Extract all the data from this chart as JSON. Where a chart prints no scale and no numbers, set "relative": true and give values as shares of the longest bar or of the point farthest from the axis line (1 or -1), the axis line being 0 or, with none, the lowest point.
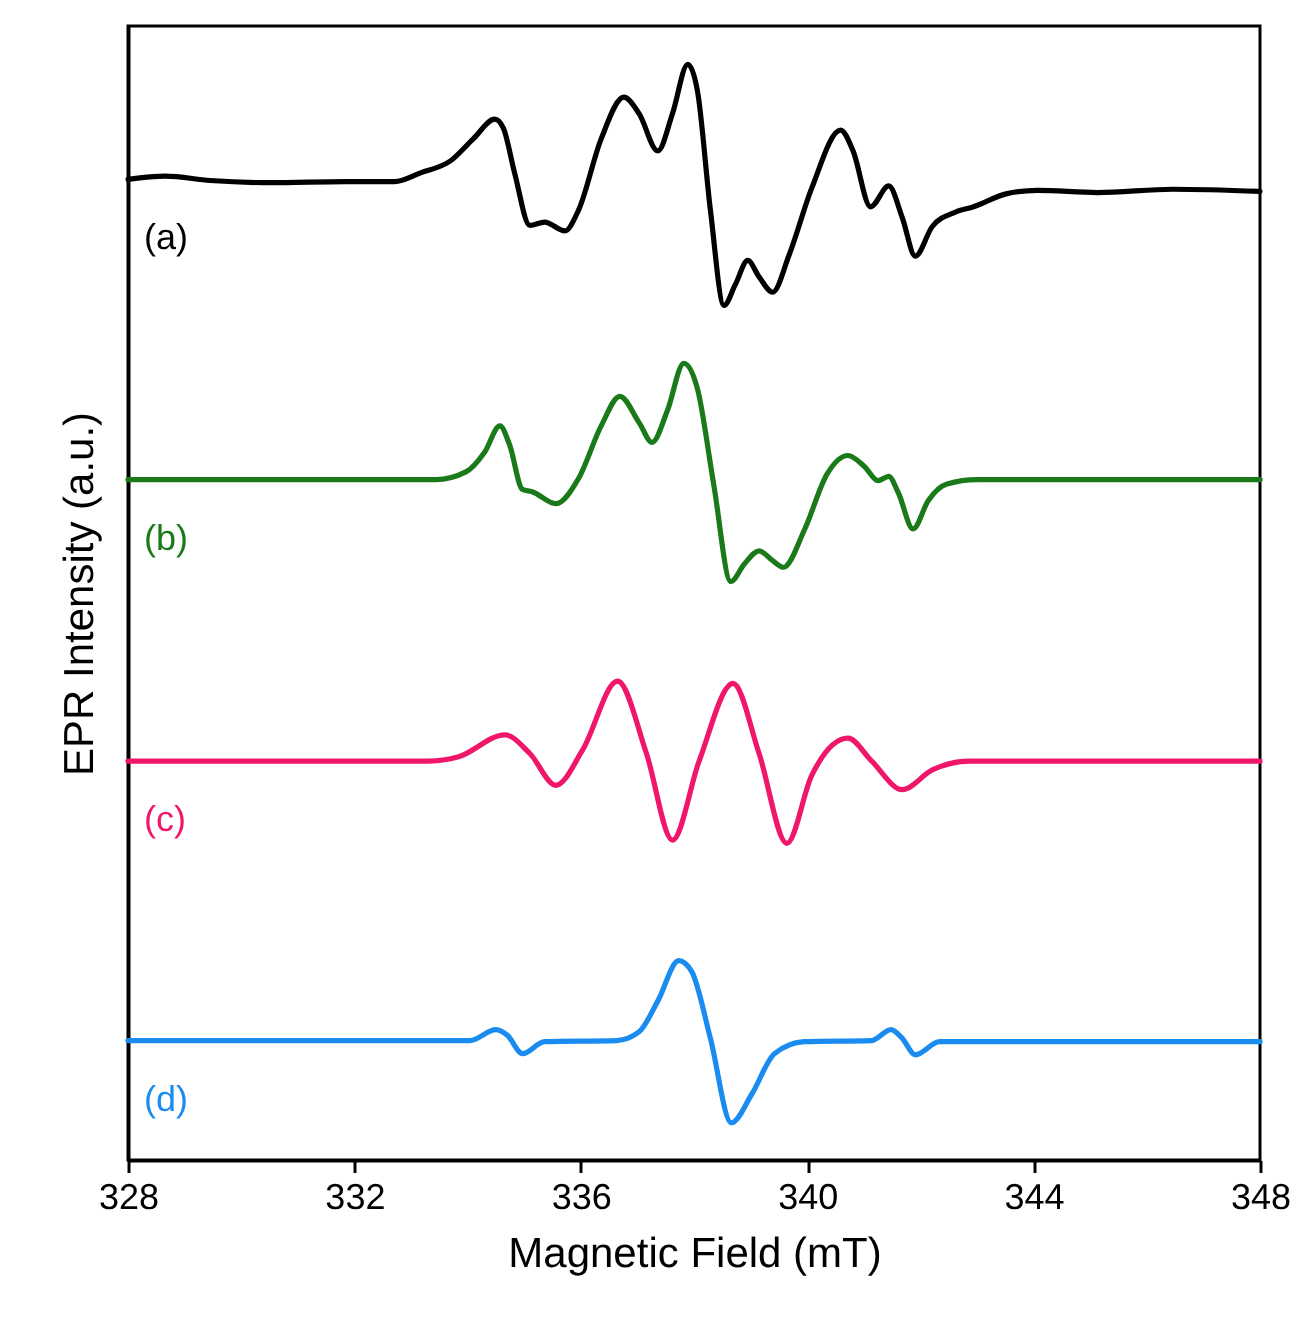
{
  "chart_data": {
    "type": "line",
    "relative": true,
    "xlabel": "Magnetic Field (mT)",
    "ylabel": "EPR Intensity (a.u.)",
    "xlim": [
      328,
      348
    ],
    "xticks": [
      328,
      332,
      336,
      340,
      344,
      348
    ],
    "tick_labels": "x",
    "series": [
      {
        "name": "(a)",
        "color": "#000000",
        "x": [
          328.0,
          328.66,
          329.45,
          330.52,
          331.85,
          332.71,
          333.17,
          333.7,
          334.1,
          334.48,
          334.63,
          334.83,
          335.1,
          335.36,
          335.72,
          335.96,
          336.36,
          336.76,
          337.03,
          337.36,
          337.62,
          337.89,
          338.06,
          338.29,
          338.53,
          338.73,
          338.95,
          339.15,
          339.39,
          339.68,
          340.08,
          340.59,
          340.81,
          341.12,
          341.44,
          341.68,
          341.91,
          342.21,
          342.61,
          342.94,
          343.53,
          344.07,
          345.13,
          346.46,
          348.0
        ],
        "values": [
          0.895,
          0.898,
          0.894,
          0.892,
          0.893,
          0.893,
          0.901,
          0.912,
          0.932,
          0.95,
          0.942,
          0.901,
          0.853,
          0.856,
          0.848,
          0.867,
          0.932,
          0.97,
          0.955,
          0.921,
          0.955,
          1.0,
          0.976,
          0.867,
          0.78,
          0.799,
          0.821,
          0.806,
          0.792,
          0.826,
          0.887,
          0.94,
          0.921,
          0.87,
          0.889,
          0.86,
          0.825,
          0.852,
          0.865,
          0.87,
          0.882,
          0.885,
          0.883,
          0.886,
          0.884
        ]
      },
      {
        "name": "(b)",
        "color": "#1a7a1a",
        "x": [
          328.0,
          333.44,
          333.97,
          334.3,
          334.57,
          334.74,
          334.97,
          335.14,
          335.56,
          335.96,
          336.36,
          336.69,
          337.03,
          337.26,
          337.53,
          337.82,
          338.06,
          338.35,
          338.65,
          338.89,
          339.15,
          339.39,
          339.58,
          339.95,
          340.35,
          340.72,
          341.01,
          341.25,
          341.44,
          341.61,
          341.87,
          342.14,
          342.47,
          343.0,
          348.0
        ],
        "values": [
          0.621,
          0.621,
          0.628,
          0.646,
          0.67,
          0.653,
          0.612,
          0.61,
          0.599,
          0.622,
          0.67,
          0.697,
          0.673,
          0.655,
          0.684,
          0.727,
          0.704,
          0.616,
          0.528,
          0.544,
          0.556,
          0.547,
          0.541,
          0.575,
          0.626,
          0.643,
          0.633,
          0.62,
          0.624,
          0.609,
          0.576,
          0.602,
          0.617,
          0.621,
          0.621
        ]
      },
      {
        "name": "(c)",
        "color": "#f0166a",
        "x": [
          328.0,
          333.31,
          333.84,
          334.66,
          335.1,
          335.56,
          336.03,
          336.65,
          337.16,
          337.62,
          338.09,
          338.69,
          339.15,
          339.64,
          340.08,
          340.72,
          341.14,
          341.68,
          342.21,
          342.87,
          348.0
        ],
        "values": [
          0.364,
          0.364,
          0.368,
          0.388,
          0.371,
          0.342,
          0.374,
          0.437,
          0.371,
          0.292,
          0.364,
          0.435,
          0.371,
          0.289,
          0.351,
          0.385,
          0.364,
          0.338,
          0.356,
          0.364,
          0.364
        ]
      },
      {
        "name": "(d)",
        "color": "#1a8cf0",
        "x": [
          328.0,
          334.04,
          334.5,
          334.7,
          334.97,
          335.36,
          336.63,
          337.03,
          337.36,
          337.73,
          337.96,
          338.29,
          338.66,
          339.02,
          339.42,
          339.95,
          341.14,
          341.48,
          341.68,
          341.91,
          342.34,
          348.0
        ],
        "values": [
          0.109,
          0.109,
          0.119,
          0.114,
          0.097,
          0.108,
          0.109,
          0.117,
          0.145,
          0.182,
          0.172,
          0.111,
          0.034,
          0.06,
          0.097,
          0.108,
          0.109,
          0.119,
          0.111,
          0.096,
          0.108,
          0.108
        ]
      }
    ]
  }
}
